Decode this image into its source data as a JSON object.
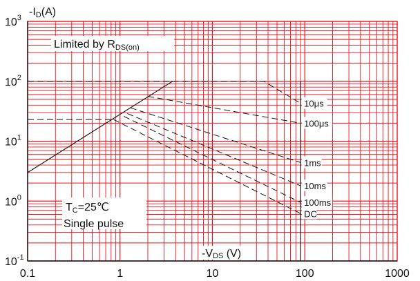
{
  "chart_data": {
    "type": "line",
    "scale": {
      "x": "log",
      "y": "log"
    },
    "xlim": [
      0.1,
      1000
    ],
    "ylim": [
      0.1,
      1000
    ],
    "grid": true,
    "grid_color": "#e8131a",
    "axis_color": "#111111",
    "x_ticks": [
      {
        "value": 0.1,
        "label": "0.1"
      },
      {
        "value": 1,
        "label": "1"
      },
      {
        "value": 10,
        "label": "10"
      },
      {
        "value": 100,
        "label": "100"
      },
      {
        "value": 1000,
        "label": "1000"
      }
    ],
    "y_ticks": [
      {
        "value": 0.1,
        "base": "10",
        "exp": "-1"
      },
      {
        "value": 1,
        "base": "10",
        "exp": "0"
      },
      {
        "value": 10,
        "base": "10",
        "exp": "1"
      },
      {
        "value": 100,
        "base": "10",
        "exp": "2"
      },
      {
        "value": 1000,
        "base": "10",
        "exp": "3"
      }
    ],
    "ylabel": {
      "prefix": "-I",
      "sub": "D",
      "suffix": "(A)"
    },
    "xlabel": {
      "prefix": "-V",
      "sub": "DS",
      "suffix": " (V)"
    },
    "annotations": {
      "rds_limit": {
        "prefix": "Limited by R",
        "sub": "DS(on)"
      },
      "tc": {
        "prefix": "T",
        "sub": "C",
        "suffix": "=25℃"
      },
      "pulse": "Single pulse"
    },
    "rds_limit_line": {
      "x": [
        0.1,
        3.7
      ],
      "y": [
        3.0,
        100
      ]
    },
    "vmax_line": {
      "x": 90,
      "y": [
        0.1,
        100
      ]
    },
    "current_limits": [
      {
        "y": 100,
        "x": [
          0.1,
          3.7
        ]
      },
      {
        "y": 23,
        "x": [
          0.1,
          0.85
        ]
      }
    ],
    "series": [
      {
        "name": "10μs",
        "style": "dashed",
        "x": [
          3.7,
          36,
          90
        ],
        "y": [
          100,
          100,
          43
        ]
      },
      {
        "name": "100μs",
        "style": "dashed",
        "x": [
          2.0,
          90
        ],
        "y": [
          56,
          20
        ]
      },
      {
        "name": "1ms",
        "style": "dashed",
        "x": [
          1.3,
          90
        ],
        "y": [
          36,
          4.4
        ]
      },
      {
        "name": "10ms",
        "style": "dashed",
        "x": [
          1.2,
          90
        ],
        "y": [
          29,
          1.8
        ]
      },
      {
        "name": "100ms",
        "style": "dashed",
        "x": [
          1.1,
          90
        ],
        "y": [
          26,
          0.95
        ]
      },
      {
        "name": "DC",
        "style": "dashed",
        "x": [
          0.85,
          90
        ],
        "y": [
          23,
          0.62
        ]
      }
    ]
  }
}
